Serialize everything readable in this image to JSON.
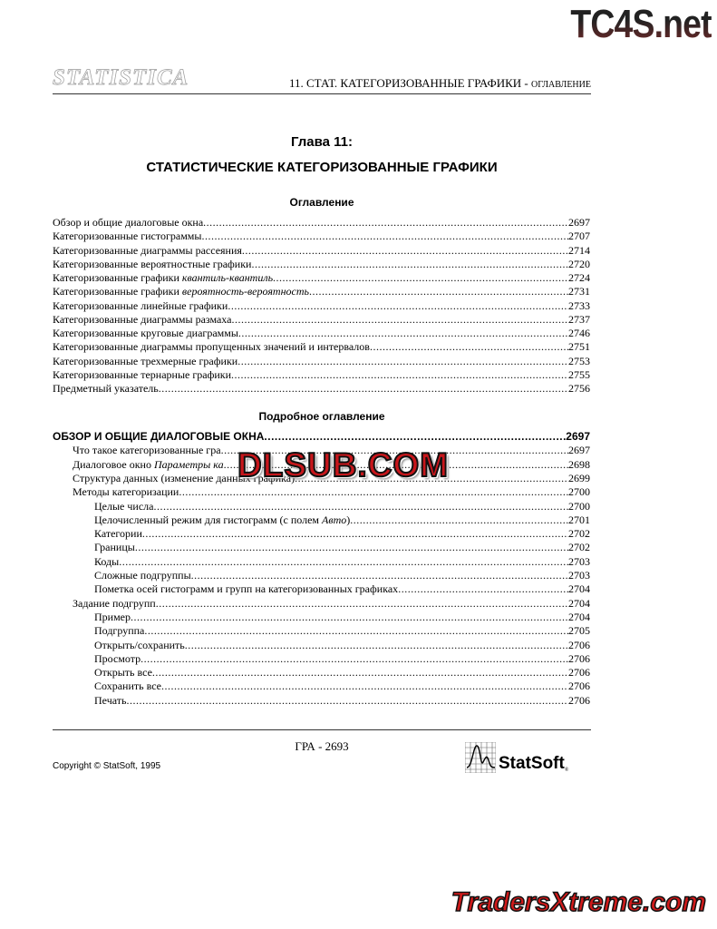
{
  "watermark_top": "TC4S.net",
  "header": {
    "logo": "STATISTICA",
    "running_title": "11.  СТАТ. КАТЕГОРИЗОВАННЫЕ ГРАФИКИ - ",
    "running_suffix": "ОГЛАВЛЕНИЕ"
  },
  "chapter": {
    "label": "Глава 11:",
    "title": "СТАТИСТИЧЕСКИЕ КАТЕГОРИЗОВАННЫЕ ГРАФИКИ"
  },
  "contents": {
    "heading": "Оглавление",
    "items": [
      {
        "text": "Обзор и общие диалоговые окна",
        "page": "2697"
      },
      {
        "text": "Категоризованные гистограммы",
        "page": "2707"
      },
      {
        "text": "Категоризованные диаграммы рассеяния",
        "page": "2714"
      },
      {
        "text": "Категоризованные вероятностные графики",
        "page": "2720"
      },
      {
        "text": "Категоризованные графики ",
        "italic": "квантиль-квантиль",
        "page": "2724"
      },
      {
        "text": "Категоризованные графики ",
        "italic": "вероятность-вероятность",
        "page": "2731"
      },
      {
        "text": "Категоризованные линейные графики",
        "page": "2733"
      },
      {
        "text": "Категоризованные диаграммы размаха",
        "page": "2737"
      },
      {
        "text": "Категоризованные круговые диаграммы",
        "page": "2746"
      },
      {
        "text": "Категоризованные диаграммы пропущенных значений и интервалов",
        "page": "2751"
      },
      {
        "text": "Категоризованные трехмерные графики",
        "page": "2753"
      },
      {
        "text": "Категоризованные тернарные графики",
        "page": "2755"
      },
      {
        "text": "Предметный указатель",
        "page": "2756"
      }
    ]
  },
  "detailed": {
    "heading": "Подробное оглавление",
    "items": [
      {
        "level": 0,
        "text": "ОБЗОР И ОБЩИЕ ДИАЛОГОВЫЕ ОКНА",
        "page": "2697"
      },
      {
        "level": 1,
        "text": "Что такое категоризованные гра",
        "page": "2697"
      },
      {
        "level": 1,
        "text": "Диалоговое окно ",
        "italic": "Параметры ка",
        "page": "2698"
      },
      {
        "level": 1,
        "text": "Структура данных (изменение данных графика)",
        "page": "2699"
      },
      {
        "level": 1,
        "text": "Методы категоризации",
        "page": "2700"
      },
      {
        "level": 2,
        "text": "Целые числа",
        "page": "2700"
      },
      {
        "level": 2,
        "text": "Целочисленный режим для гистограмм (с полем ",
        "italic": "Авто",
        "tail": ")",
        "page": "2701"
      },
      {
        "level": 2,
        "text": "Категории",
        "page": "2702"
      },
      {
        "level": 2,
        "text": "Границы",
        "page": "2702"
      },
      {
        "level": 2,
        "text": "Коды",
        "page": "2703"
      },
      {
        "level": 2,
        "text": "Сложные подгруппы",
        "page": "2703"
      },
      {
        "level": 2,
        "text": "Пометка осей гистограмм и групп на категоризованных графиках",
        "page": "2704"
      },
      {
        "level": 1,
        "text": "Задание подгрупп",
        "page": "2704"
      },
      {
        "level": 2,
        "text": "Пример",
        "page": "2704"
      },
      {
        "level": 2,
        "text": "Подгруппа",
        "page": "2705"
      },
      {
        "level": 2,
        "text": "Открыть/сохранить",
        "page": "2706"
      },
      {
        "level": 2,
        "text": "Просмотр",
        "page": "2706"
      },
      {
        "level": 2,
        "text": "Открыть все",
        "page": "2706"
      },
      {
        "level": 2,
        "text": "Сохранить все",
        "page": "2706"
      },
      {
        "level": 2,
        "text": "Печать",
        "page": "2706"
      }
    ]
  },
  "watermark_mid": "DLSUB.COM",
  "footer": {
    "page_label": "ГРА - 2693",
    "copyright": "Copyright © StatSoft, 1995",
    "brand": "StatSoft",
    "brand_mark": "®"
  },
  "watermark_bottom": "TradersXtreme.com"
}
